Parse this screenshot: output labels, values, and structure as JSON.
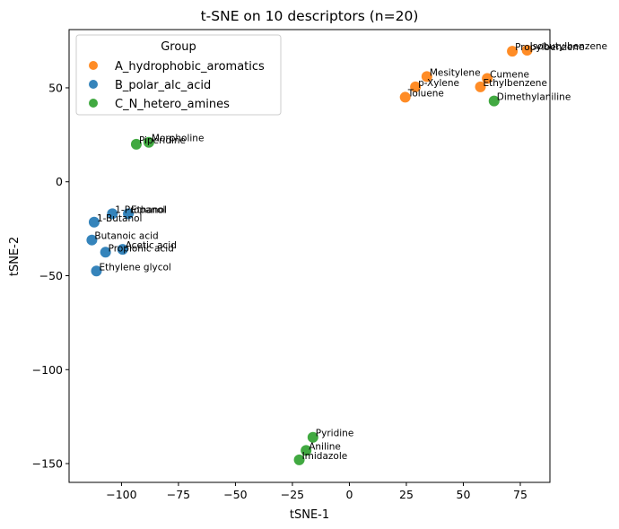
{
  "chart_data": {
    "type": "scatter",
    "title": "t-SNE on 10 descriptors (n=20)",
    "xlabel": "tSNE-1",
    "ylabel": "tSNE-2",
    "xlim": [
      -123,
      88
    ],
    "ylim": [
      -160,
      81
    ],
    "xticks": [
      -100,
      -75,
      -50,
      -25,
      0,
      25,
      50,
      75
    ],
    "yticks": [
      50,
      0,
      -50,
      -100,
      -150
    ],
    "xtick_labels": [
      "−100",
      "−75",
      "−50",
      "−25",
      "0",
      "25",
      "50",
      "75"
    ],
    "ytick_labels": [
      "50",
      "0",
      "−50",
      "−100",
      "−150"
    ],
    "grid": false,
    "legend": {
      "title": "Group",
      "placement": "upper-left"
    },
    "series": [
      {
        "name": "A_hydrophobic_aromatics",
        "color": "#ff7f0e",
        "points": [
          {
            "label": "Propylbenzene",
            "x": 71.5,
            "y": 69.5
          },
          {
            "label": "Isobutylbenzene",
            "x": 78,
            "y": 70
          },
          {
            "label": "Mesitylene",
            "x": 34,
            "y": 56
          },
          {
            "label": "p-Xylene",
            "x": 29,
            "y": 50.5
          },
          {
            "label": "Toluene",
            "x": 24.5,
            "y": 45
          },
          {
            "label": "Cumene",
            "x": 60.5,
            "y": 55
          },
          {
            "label": "Ethylbenzene",
            "x": 57.5,
            "y": 50.5
          }
        ]
      },
      {
        "name": "B_polar_alc_acid",
        "color": "#1f77b4",
        "points": [
          {
            "label": "1-Propanol",
            "x": -104,
            "y": -17
          },
          {
            "label": "Ethanol",
            "x": -97,
            "y": -17
          },
          {
            "label": "1-Butanol",
            "x": -112,
            "y": -21.5
          },
          {
            "label": "Butanoic acid",
            "x": -113,
            "y": -31
          },
          {
            "label": "Acetic acid",
            "x": -99.5,
            "y": -36
          },
          {
            "label": "Propionic acid",
            "x": -107,
            "y": -37.5
          },
          {
            "label": "Ethylene glycol",
            "x": -111,
            "y": -47.5
          }
        ]
      },
      {
        "name": "C_N_hetero_amines",
        "color": "#2ca02c",
        "points": [
          {
            "label": "Morpholine",
            "x": -88,
            "y": 21
          },
          {
            "label": "Piperidine",
            "x": -93.5,
            "y": 20
          },
          {
            "label": "Dimethylaniline",
            "x": 63.5,
            "y": 43
          },
          {
            "label": "Pyridine",
            "x": -16,
            "y": -136
          },
          {
            "label": "Aniline",
            "x": -19,
            "y": -143
          },
          {
            "label": "Imidazole",
            "x": -22,
            "y": -148
          }
        ]
      }
    ]
  }
}
